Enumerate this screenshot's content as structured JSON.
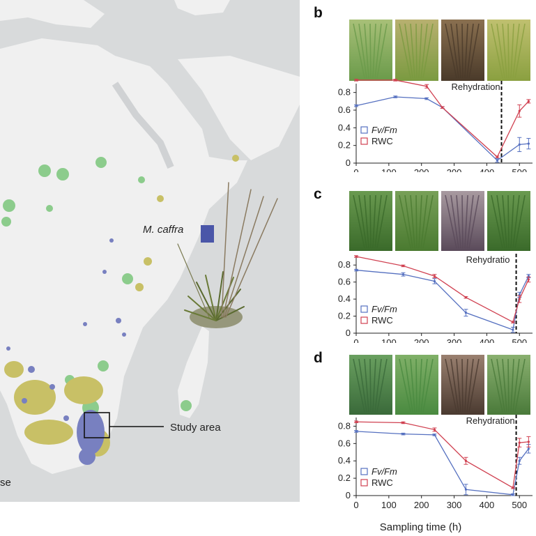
{
  "map": {
    "species_label": "M. caffra",
    "study_area_label": "Study area",
    "partial_legend_text": "se",
    "colors": {
      "ocean": "#d8dadb",
      "land": "#f0f0f0",
      "green": "#8ccc8c",
      "olive": "#c8c066",
      "purple": "#7880c0",
      "marker": "#4a56a8"
    }
  },
  "panels": [
    {
      "label": "b",
      "rehydration_label": "Rehydration",
      "legend": [
        "Fv/Fm",
        "RWC"
      ],
      "photo_tones": [
        [
          "#6a9a4a",
          "#a8c078"
        ],
        [
          "#7a9a40",
          "#b8b070"
        ],
        [
          "#4a3a2a",
          "#8a7050"
        ],
        [
          "#8aa040",
          "#c0c070"
        ]
      ]
    },
    {
      "label": "c",
      "rehydration_label": "Rehydratio",
      "legend": [
        "Fv/Fm",
        "RWC"
      ],
      "photo_tones": [
        [
          "#3a6a2a",
          "#6a9a50"
        ],
        [
          "#4a7a30",
          "#78a058"
        ],
        [
          "#5a4a5a",
          "#a89aa0"
        ],
        [
          "#3a6a2a",
          "#6a9a50"
        ]
      ]
    },
    {
      "label": "d",
      "rehydration_label": "Rehydration",
      "legend": [
        "Fv/Fm",
        "RWC"
      ],
      "photo_tones": [
        [
          "#3a6a3a",
          "#6aa060"
        ],
        [
          "#4a8a40",
          "#80b068"
        ],
        [
          "#4a3a30",
          "#9a8070"
        ],
        [
          "#4a7a3a",
          "#8ab070"
        ]
      ]
    }
  ],
  "x_axis_label": "Sampling time (h)",
  "chart_data": [
    {
      "type": "line",
      "panel": "b",
      "xlim": [
        0,
        540
      ],
      "ylim": [
        0,
        0.9
      ],
      "xticks": [
        0,
        100,
        200,
        300,
        400,
        500
      ],
      "yticks": [
        0,
        0.2,
        0.4,
        0.6,
        0.8
      ],
      "rehydration_x": 445,
      "series": [
        {
          "name": "Fv/Fm",
          "color": "#5570c0",
          "x": [
            0,
            120,
            216,
            264,
            432,
            500,
            528
          ],
          "y": [
            0.65,
            0.75,
            0.73,
            0.63,
            0.03,
            0.21,
            0.22
          ],
          "err": [
            0.01,
            0.01,
            0.01,
            0.01,
            0.02,
            0.08,
            0.06
          ]
        },
        {
          "name": "RWC",
          "color": "#d04050",
          "x": [
            0,
            120,
            216,
            264,
            432,
            500,
            528
          ],
          "y": [
            0.94,
            0.94,
            0.87,
            0.63,
            0.07,
            0.59,
            0.7
          ],
          "err": [
            0.01,
            0.01,
            0.02,
            0.01,
            0.01,
            0.07,
            0.02
          ]
        }
      ]
    },
    {
      "type": "line",
      "panel": "c",
      "xlim": [
        0,
        540
      ],
      "ylim": [
        0,
        0.9
      ],
      "xticks": [
        0,
        100,
        200,
        300,
        400,
        500
      ],
      "yticks": [
        0,
        0.2,
        0.4,
        0.6,
        0.8
      ],
      "rehydration_x": 490,
      "series": [
        {
          "name": "Fv/Fm",
          "color": "#5570c0",
          "x": [
            0,
            144,
            240,
            336,
            480,
            500,
            528
          ],
          "y": [
            0.74,
            0.69,
            0.61,
            0.24,
            0.04,
            0.45,
            0.67
          ],
          "err": [
            0.01,
            0.02,
            0.03,
            0.04,
            0.03,
            0.03,
            0.02
          ]
        },
        {
          "name": "RWC",
          "color": "#d04050",
          "x": [
            0,
            144,
            240,
            336,
            480,
            500,
            528
          ],
          "y": [
            0.9,
            0.79,
            0.67,
            0.42,
            0.13,
            0.4,
            0.63
          ],
          "err": [
            0.01,
            0.01,
            0.02,
            0.01,
            0.01,
            0.04,
            0.03
          ]
        }
      ]
    },
    {
      "type": "line",
      "panel": "d",
      "xlim": [
        0,
        540
      ],
      "ylim": [
        0,
        0.9
      ],
      "xticks": [
        0,
        100,
        200,
        300,
        400,
        500
      ],
      "yticks": [
        0,
        0.2,
        0.4,
        0.6,
        0.8
      ],
      "rehydration_x": 490,
      "series": [
        {
          "name": "Fv/Fm",
          "color": "#5570c0",
          "x": [
            0,
            144,
            240,
            336,
            480,
            500,
            528
          ],
          "y": [
            0.74,
            0.71,
            0.7,
            0.07,
            0.01,
            0.4,
            0.54
          ],
          "err": [
            0.01,
            0.01,
            0.01,
            0.06,
            0.01,
            0.04,
            0.05
          ]
        },
        {
          "name": "RWC",
          "color": "#d04050",
          "x": [
            0,
            144,
            240,
            336,
            480,
            500,
            528
          ],
          "y": [
            0.85,
            0.84,
            0.76,
            0.4,
            0.09,
            0.61,
            0.62
          ],
          "err": [
            0.01,
            0.01,
            0.02,
            0.04,
            0.01,
            0.05,
            0.06
          ]
        }
      ]
    }
  ]
}
